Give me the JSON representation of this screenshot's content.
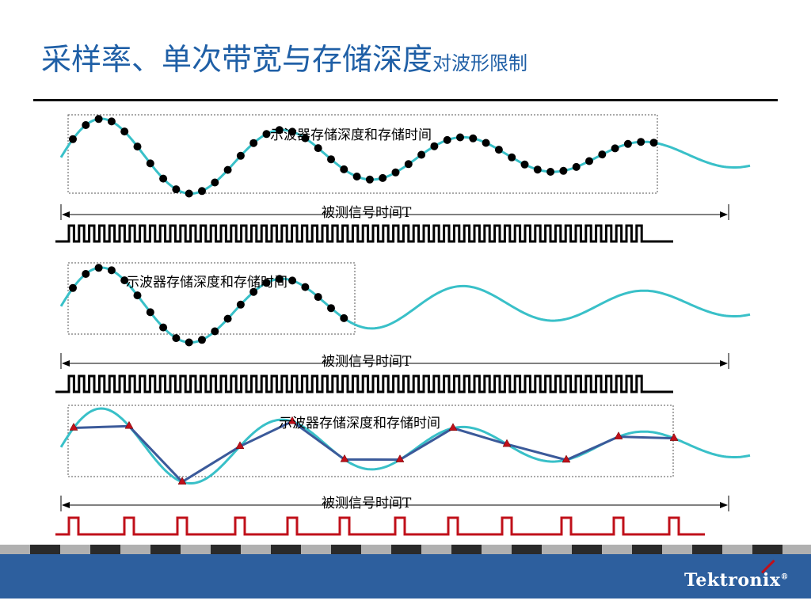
{
  "slide": {
    "title_main": "采样率、单次带宽与存储深度",
    "title_sub": "对波形限制",
    "panel1_label": "示波器存储深度和存储时间",
    "panel2_label": "示波器存储深度和存储时间",
    "panel3_label": "示波器存储深度和存储时间",
    "signal_label_1": "被测信号时间T",
    "signal_label_2": "被测信号时间T",
    "signal_label_3": "被测信号时间T"
  },
  "colors": {
    "title": "#1f5fa6",
    "wave": "#39c0c8",
    "recon": "#3b5a9a",
    "dots": "#000000",
    "tri": "#c0101a",
    "footer_bar": "#2d5f9e"
  },
  "icons": [
    "tektronix-logo"
  ],
  "brand": "Tektronix",
  "brand_mark": "®"
}
